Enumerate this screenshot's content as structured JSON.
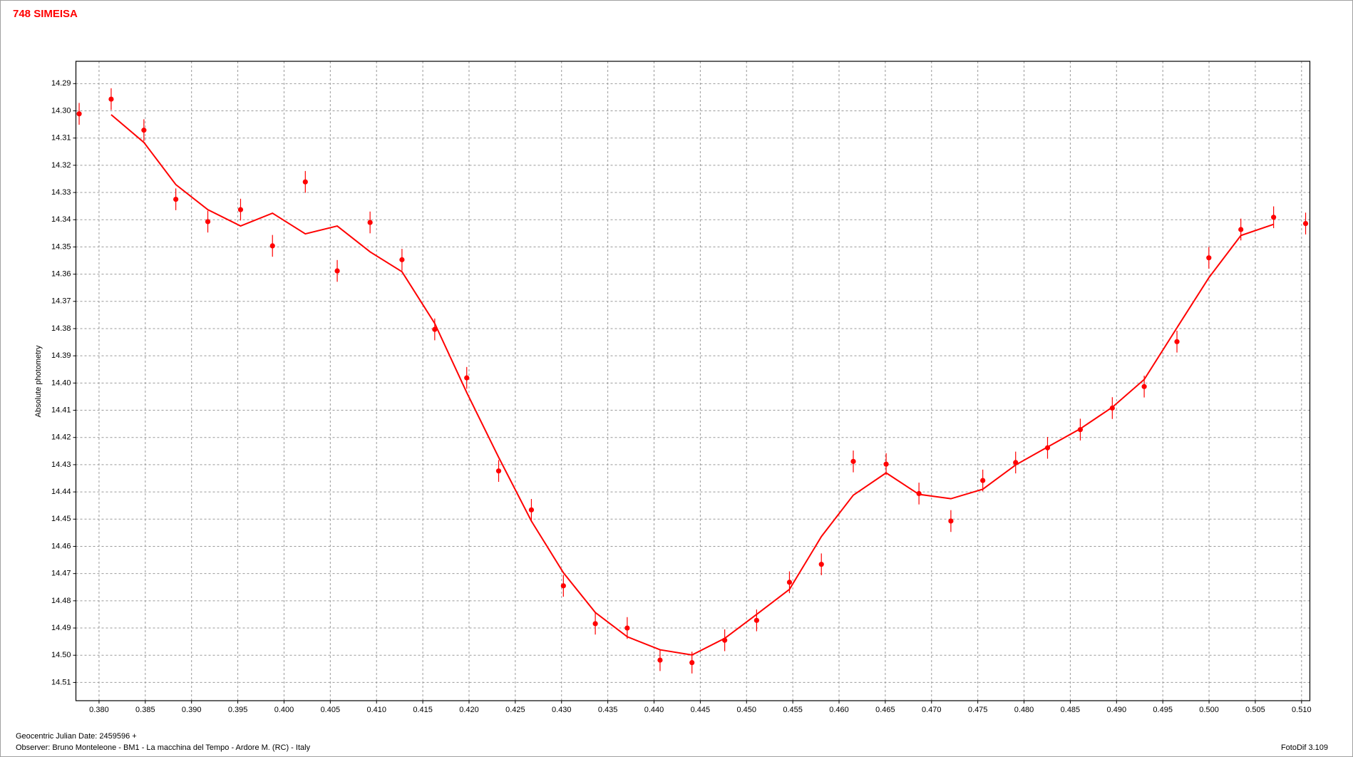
{
  "chart_data": {
    "type": "scatter",
    "title": "748 SIMEISA",
    "y_label": "Absolute photometry",
    "footer": {
      "date": "Geocentric Julian Date: 2459596 +",
      "observer": "Observer: Bruno Monteleone - BM1 - La macchina del Tempo - Ardore M. (RC) - Italy",
      "software": "FotoDif 3.109"
    },
    "color": "#ff0000",
    "grid": true,
    "y_inverted": true,
    "xlim": [
      0.3775,
      0.5109
    ],
    "ylim": [
      14.2818,
      14.5167
    ],
    "xticks": [
      {
        "value": 0.38,
        "label": "0.380"
      },
      0.385,
      {
        "value": 0.39,
        "label": "0.390"
      },
      0.395,
      {
        "value": 0.4,
        "label": "0.400"
      },
      0.405,
      {
        "value": 0.41,
        "label": "0.410"
      },
      0.415,
      {
        "value": 0.42,
        "label": "0.420"
      },
      0.425,
      {
        "value": 0.43,
        "label": "0.430"
      },
      0.435,
      {
        "value": 0.44,
        "label": "0.440"
      },
      0.445,
      {
        "value": 0.45,
        "label": "0.450"
      },
      0.455,
      {
        "value": 0.46,
        "label": "0.460"
      },
      0.465,
      {
        "value": 0.47,
        "label": "0.470"
      },
      0.475,
      {
        "value": 0.48,
        "label": "0.480"
      },
      0.485,
      {
        "value": 0.49,
        "label": "0.490"
      },
      0.495,
      {
        "value": 0.5,
        "label": "0.500"
      },
      0.505,
      {
        "value": 0.51,
        "label": "0.510"
      }
    ],
    "yticks": [
      14.29,
      {
        "value": 14.3,
        "label": "14.30"
      },
      14.31,
      14.32,
      14.33,
      14.34,
      14.35,
      14.36,
      14.37,
      14.38,
      14.39,
      {
        "value": 14.4,
        "label": "14.40"
      },
      14.41,
      14.42,
      14.43,
      14.44,
      14.45,
      14.46,
      14.47,
      14.48,
      14.49,
      {
        "value": 14.5,
        "label": "14.50"
      },
      14.51
    ],
    "points": {
      "x": [
        0.37785,
        0.38131,
        0.38485,
        0.3883,
        0.39176,
        0.3953,
        0.39875,
        0.4023,
        0.40575,
        0.4093,
        0.41275,
        0.41629,
        0.41975,
        0.4232,
        0.42674,
        0.4302,
        0.43365,
        0.4371,
        0.44065,
        0.4441,
        0.44764,
        0.45109,
        0.45464,
        0.45809,
        0.46154,
        0.46509,
        0.46864,
        0.47209,
        0.47554,
        0.47909,
        0.48254,
        0.48608,
        0.48954,
        0.49299,
        0.49653,
        0.49998,
        0.50344,
        0.50698,
        0.51044
      ],
      "y": [
        14.3011,
        14.2957,
        14.3071,
        14.3325,
        14.3407,
        14.3363,
        14.3496,
        14.3261,
        14.3588,
        14.341,
        14.3547,
        14.3803,
        14.3981,
        14.4323,
        14.4466,
        14.4745,
        14.4884,
        14.49,
        14.5018,
        14.5027,
        14.4945,
        14.4872,
        14.4732,
        14.4666,
        14.4288,
        14.4298,
        14.4406,
        14.4507,
        14.4358,
        14.4292,
        14.4238,
        14.4171,
        14.4092,
        14.4013,
        14.3848,
        14.354,
        14.3436,
        14.3391,
        14.3414
      ],
      "error": 0.004
    },
    "fit": {
      "x": [
        0.38131,
        0.38485,
        0.3883,
        0.39176,
        0.3953,
        0.39875,
        0.4023,
        0.40575,
        0.4093,
        0.41275,
        0.41629,
        0.41975,
        0.4232,
        0.42674,
        0.4302,
        0.43365,
        0.4371,
        0.44065,
        0.4441,
        0.44764,
        0.45109,
        0.45464,
        0.45809,
        0.46154,
        0.46509,
        0.46864,
        0.47209,
        0.47554,
        0.47909,
        0.48254,
        0.48608,
        0.48954,
        0.49299,
        0.49653,
        0.49998,
        0.50344,
        0.50698
      ],
      "y": [
        14.3014,
        14.3116,
        14.3271,
        14.3363,
        14.3423,
        14.3376,
        14.3452,
        14.3423,
        14.3518,
        14.3591,
        14.3781,
        14.4035,
        14.4273,
        14.4507,
        14.4697,
        14.4843,
        14.4932,
        14.498,
        14.4999,
        14.4938,
        14.485,
        14.4758,
        14.4564,
        14.4412,
        14.433,
        14.4409,
        14.4425,
        14.439,
        14.4301,
        14.4235,
        14.4168,
        14.4089,
        14.3987,
        14.3797,
        14.3613,
        14.3458,
        14.3417
      ]
    }
  }
}
